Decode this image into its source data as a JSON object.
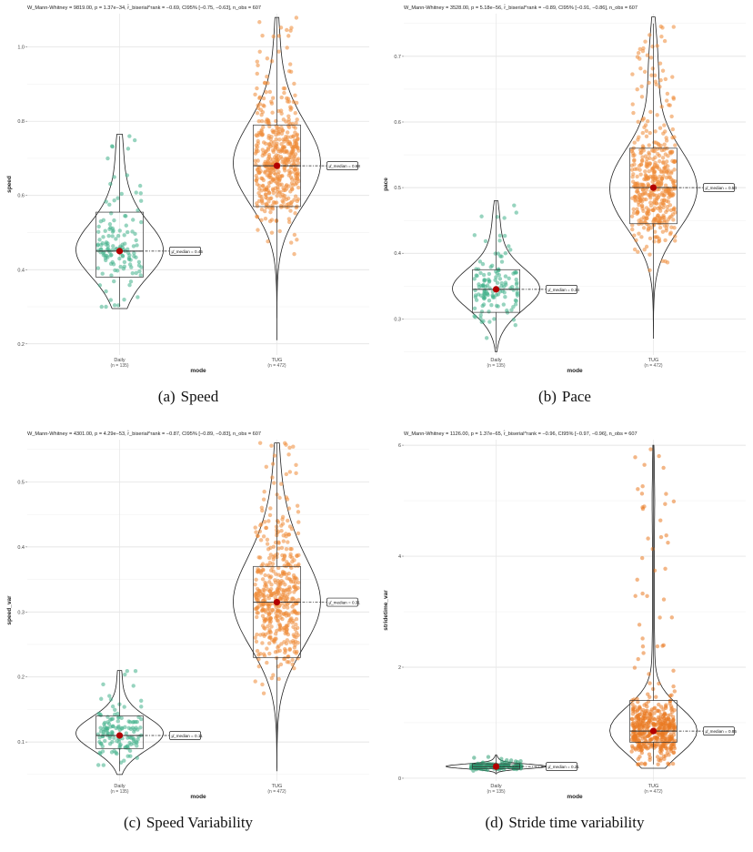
{
  "chart_data": [
    {
      "type": "violin-box-scatter",
      "caption_tag": "(a)",
      "caption": "Speed",
      "subtitle": "W_Mann-Whitney = 9819.00, p = 1.37e−34, r̂_biserial^rank = −0.69, CI95% [−0.75, −0.63], n_obs = 607",
      "xlabel": "mode",
      "ylabel": "speed",
      "ylim": [
        0.17,
        1.09
      ],
      "yticks": [
        0.2,
        0.4,
        0.6,
        0.8,
        1.0
      ],
      "ytick_labels": [
        "0.2",
        "0.4",
        "0.6",
        "0.8",
        "1.0"
      ],
      "groups": [
        {
          "name": "Daily",
          "n_label": "(n = 135)",
          "color": "#41b08a",
          "n_points": 135,
          "min": 0.3,
          "q1": 0.38,
          "median": 0.45,
          "q3": 0.555,
          "max": 0.76,
          "violin_lo": 0.295,
          "violin_hi": 0.765,
          "median_label": "μ̂_median = 0.45"
        },
        {
          "name": "TUG",
          "n_label": "(n = 472)",
          "color": "#ef8a36",
          "n_points": 472,
          "min": 0.27,
          "q1": 0.57,
          "median": 0.68,
          "q3": 0.79,
          "max": 1.08,
          "violin_lo": 0.21,
          "violin_hi": 1.08,
          "median_label": "μ̂_median = 0.68"
        }
      ]
    },
    {
      "type": "violin-box-scatter",
      "caption_tag": "(b)",
      "caption": "Pace",
      "subtitle": "W_Mann-Whitney = 3528.00, p = 5.18e−56, r̂_biserial^rank = −0.89, CI95% [−0.91, −0.86], n_obs = 607",
      "xlabel": "mode",
      "ylabel": "pace",
      "ylim": [
        0.245,
        0.765
      ],
      "yticks": [
        0.3,
        0.4,
        0.5,
        0.6,
        0.7
      ],
      "ytick_labels": [
        "0.3",
        "0.4",
        "0.5",
        "0.6",
        "0.7"
      ],
      "groups": [
        {
          "name": "Daily",
          "n_label": "(n = 135)",
          "color": "#41b08a",
          "n_points": 135,
          "min": 0.255,
          "q1": 0.31,
          "median": 0.345,
          "q3": 0.375,
          "max": 0.48,
          "violin_lo": 0.25,
          "violin_hi": 0.48,
          "median_label": "μ̂_median = 0.34"
        },
        {
          "name": "TUG",
          "n_label": "(n = 472)",
          "color": "#ef8a36",
          "n_points": 472,
          "min": 0.29,
          "q1": 0.445,
          "median": 0.5,
          "q3": 0.56,
          "max": 0.75,
          "violin_lo": 0.27,
          "violin_hi": 0.76,
          "median_label": "μ̂_median = 0.50"
        }
      ]
    },
    {
      "type": "violin-box-scatter",
      "caption_tag": "(c)",
      "caption": "Speed Variability",
      "subtitle": "W_Mann-Whitney = 4301.00, p = 4.29e−53, r̂_biserial^rank = −0.87, CI95% [−0.89, −0.83], n_obs = 607",
      "xlabel": "mode",
      "ylabel": "speed_var",
      "ylim": [
        0.04,
        0.565
      ],
      "yticks": [
        0.1,
        0.2,
        0.3,
        0.4,
        0.5
      ],
      "ytick_labels": [
        "0.1",
        "0.2",
        "0.3",
        "0.4",
        "0.5"
      ],
      "groups": [
        {
          "name": "Daily",
          "n_label": "(n = 135)",
          "color": "#41b08a",
          "n_points": 135,
          "min": 0.055,
          "q1": 0.09,
          "median": 0.11,
          "q3": 0.14,
          "max": 0.21,
          "violin_lo": 0.05,
          "violin_hi": 0.21,
          "median_label": "μ̂_median = 0.11"
        },
        {
          "name": "TUG",
          "n_label": "(n = 472)",
          "color": "#ef8a36",
          "n_points": 472,
          "min": 0.06,
          "q1": 0.23,
          "median": 0.315,
          "q3": 0.37,
          "max": 0.56,
          "violin_lo": 0.055,
          "violin_hi": 0.56,
          "median_label": "μ̂_median = 0.31"
        }
      ]
    },
    {
      "type": "violin-box-scatter",
      "caption_tag": "(d)",
      "caption": "Stride time variability",
      "subtitle": "W_Mann-Whitney = 1126.00, p = 1.37e−65, r̂_biserial^rank = −0.96, CI95% [−0.97, −0.96], n_obs = 607",
      "xlabel": "mode",
      "ylabel": "stridetime_var",
      "ylim": [
        -0.05,
        6.1
      ],
      "yticks": [
        0,
        2,
        4,
        6
      ],
      "ytick_labels": [
        "0",
        "2",
        "4",
        "6"
      ],
      "groups": [
        {
          "name": "Daily",
          "n_label": "(n = 135)",
          "color": "#2e9e72",
          "n_points": 135,
          "min": 0.1,
          "q1": 0.17,
          "median": 0.21,
          "q3": 0.26,
          "max": 0.4,
          "violin_lo": 0.08,
          "violin_hi": 0.42,
          "median_label": "μ̂_median = 0.21"
        },
        {
          "name": "TUG",
          "n_label": "(n = 472)",
          "color": "#ea7a22",
          "n_points": 472,
          "min": 0.25,
          "q1": 0.65,
          "median": 0.85,
          "q3": 1.4,
          "max": 6.0,
          "violin_lo": 0.18,
          "violin_hi": 6.0,
          "median_label": "μ̂_median = 0.85"
        }
      ]
    }
  ]
}
